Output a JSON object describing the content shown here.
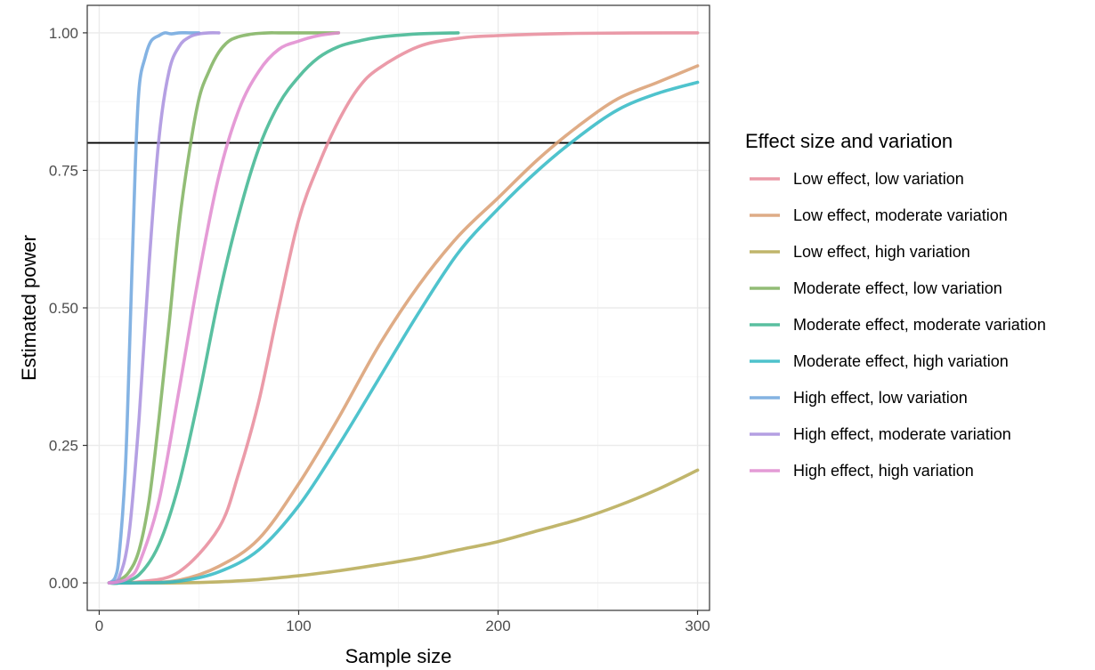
{
  "chart_data": {
    "type": "line",
    "xlabel": "Sample size",
    "ylabel": "Estimated power",
    "xlim": [
      -6,
      306
    ],
    "ylim": [
      -0.05,
      1.05
    ],
    "x_ticks": [
      0,
      100,
      200,
      300
    ],
    "x_tick_labels": [
      "0",
      "100",
      "200",
      "300"
    ],
    "y_ticks": [
      0,
      0.25,
      0.5,
      0.75,
      1.0
    ],
    "y_tick_labels": [
      "0.00",
      "0.25",
      "0.50",
      "0.75",
      "1.00"
    ],
    "grid": true,
    "reference_line": {
      "y": 0.8,
      "color": "#000000"
    },
    "legend": {
      "title": "Effect size and variation",
      "placement": "right"
    },
    "series": [
      {
        "name": "Low effect, low variation",
        "color": "#E7899A",
        "x": [
          5,
          20,
          40,
          60,
          70,
          80,
          90,
          100,
          110,
          120,
          130,
          140,
          160,
          180,
          200,
          240,
          300
        ],
        "y": [
          0,
          0.002,
          0.02,
          0.1,
          0.2,
          0.33,
          0.5,
          0.66,
          0.76,
          0.84,
          0.9,
          0.935,
          0.975,
          0.99,
          0.995,
          0.999,
          1.0
        ]
      },
      {
        "name": "Low effect, moderate variation",
        "color": "#D99E71",
        "x": [
          5,
          20,
          40,
          60,
          80,
          100,
          120,
          140,
          160,
          180,
          200,
          220,
          240,
          260,
          280,
          300
        ],
        "y": [
          0,
          0,
          0.005,
          0.03,
          0.08,
          0.18,
          0.3,
          0.43,
          0.54,
          0.63,
          0.7,
          0.77,
          0.83,
          0.88,
          0.91,
          0.94
        ]
      },
      {
        "name": "Low effect, high variation",
        "color": "#B6A952",
        "x": [
          5,
          20,
          40,
          60,
          80,
          100,
          120,
          140,
          160,
          180,
          200,
          220,
          240,
          260,
          280,
          300
        ],
        "y": [
          0,
          0,
          0,
          0.002,
          0.006,
          0.013,
          0.022,
          0.033,
          0.045,
          0.06,
          0.075,
          0.095,
          0.115,
          0.14,
          0.17,
          0.205
        ]
      },
      {
        "name": "Moderate effect, low variation",
        "color": "#7FB15E",
        "x": [
          5,
          10,
          15,
          20,
          25,
          30,
          35,
          40,
          45,
          50,
          55,
          60,
          65,
          70,
          75,
          80,
          85,
          90,
          100,
          120
        ],
        "y": [
          0,
          0.005,
          0.02,
          0.06,
          0.15,
          0.3,
          0.47,
          0.65,
          0.78,
          0.88,
          0.93,
          0.965,
          0.985,
          0.993,
          0.997,
          0.999,
          1.0,
          1.0,
          1.0,
          1.0
        ]
      },
      {
        "name": "Moderate effect, moderate variation",
        "color": "#3DB58F",
        "x": [
          5,
          10,
          20,
          30,
          40,
          50,
          60,
          70,
          80,
          90,
          100,
          110,
          120,
          130,
          140,
          160,
          180
        ],
        "y": [
          0,
          0,
          0.015,
          0.07,
          0.18,
          0.34,
          0.52,
          0.67,
          0.79,
          0.87,
          0.92,
          0.955,
          0.975,
          0.985,
          0.992,
          0.998,
          1.0
        ]
      },
      {
        "name": "Moderate effect, high variation",
        "color": "#30B8C4",
        "x": [
          5,
          20,
          40,
          60,
          80,
          100,
          120,
          140,
          160,
          180,
          200,
          220,
          240,
          260,
          280,
          300
        ],
        "y": [
          0,
          0,
          0.003,
          0.02,
          0.06,
          0.14,
          0.25,
          0.37,
          0.49,
          0.6,
          0.68,
          0.75,
          0.81,
          0.86,
          0.89,
          0.91
        ]
      },
      {
        "name": "High effect, low variation",
        "color": "#6FA6DE",
        "x": [
          5,
          8,
          10,
          13,
          15,
          18,
          20,
          23,
          26,
          30,
          33,
          36,
          40,
          45,
          50
        ],
        "y": [
          0,
          0.01,
          0.05,
          0.2,
          0.4,
          0.75,
          0.9,
          0.955,
          0.985,
          0.995,
          1.0,
          0.998,
          1.0,
          1.0,
          1.0
        ]
      },
      {
        "name": "High effect, moderate variation",
        "color": "#A88FDE",
        "x": [
          5,
          10,
          15,
          20,
          25,
          30,
          35,
          40,
          45,
          50,
          55,
          60
        ],
        "y": [
          0,
          0.01,
          0.09,
          0.3,
          0.58,
          0.81,
          0.93,
          0.975,
          0.992,
          0.998,
          1.0,
          1.0
        ]
      },
      {
        "name": "High effect, high variation",
        "color": "#E08ACF",
        "x": [
          5,
          10,
          15,
          20,
          30,
          40,
          50,
          60,
          70,
          80,
          90,
          100,
          110,
          120
        ],
        "y": [
          0,
          0.002,
          0.01,
          0.035,
          0.15,
          0.35,
          0.56,
          0.74,
          0.86,
          0.93,
          0.97,
          0.985,
          0.995,
          1.0
        ]
      }
    ]
  }
}
